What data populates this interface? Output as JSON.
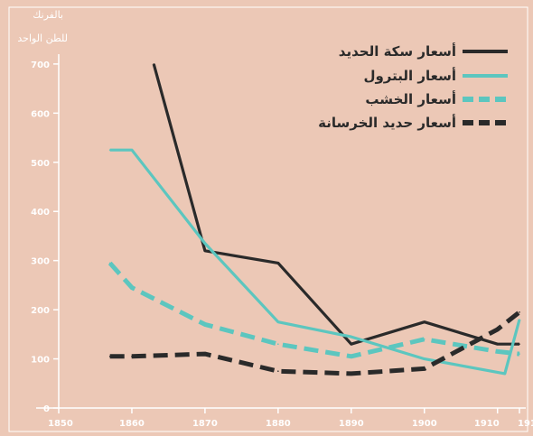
{
  "chart_data": {
    "type": "line",
    "ylabel_lines": [
      "بالفرنك",
      "للطن الواحد"
    ],
    "x_ticks": [
      "1850",
      "1860",
      "1870",
      "1880",
      "1890",
      "1900",
      "1910",
      "1913"
    ],
    "y_ticks": [
      "0",
      "100",
      "200",
      "300",
      "400",
      "500",
      "600",
      "700"
    ],
    "xlim": [
      1850,
      1913
    ],
    "ylim": [
      0,
      720
    ],
    "legend_position": "top-right",
    "grid": false,
    "series": [
      {
        "name": "أسعار سكة الحديد",
        "color": "#2a2a2a",
        "style": "solid",
        "x": [
          1863,
          1870,
          1880,
          1890,
          1900,
          1910,
          1913
        ],
        "y": [
          700,
          320,
          295,
          130,
          175,
          130,
          130
        ]
      },
      {
        "name": "أسعار البترول",
        "color": "#5cc6bf",
        "style": "solid",
        "x": [
          1857,
          1860,
          1870,
          1880,
          1890,
          1900,
          1911,
          1913
        ],
        "y": [
          525,
          525,
          335,
          175,
          145,
          100,
          70,
          180
        ]
      },
      {
        "name": "أسعار الخشب",
        "color": "#5cc6bf",
        "style": "dashed",
        "x": [
          1857,
          1860,
          1870,
          1880,
          1890,
          1900,
          1910,
          1913
        ],
        "y": [
          295,
          245,
          170,
          130,
          105,
          140,
          115,
          110
        ]
      },
      {
        "name": "أسعار حديد الخرسانة",
        "color": "#2a2a2a",
        "style": "dashed",
        "x": [
          1857,
          1860,
          1870,
          1880,
          1890,
          1900,
          1910,
          1913
        ],
        "y": [
          105,
          105,
          110,
          75,
          70,
          80,
          160,
          195
        ]
      }
    ]
  }
}
